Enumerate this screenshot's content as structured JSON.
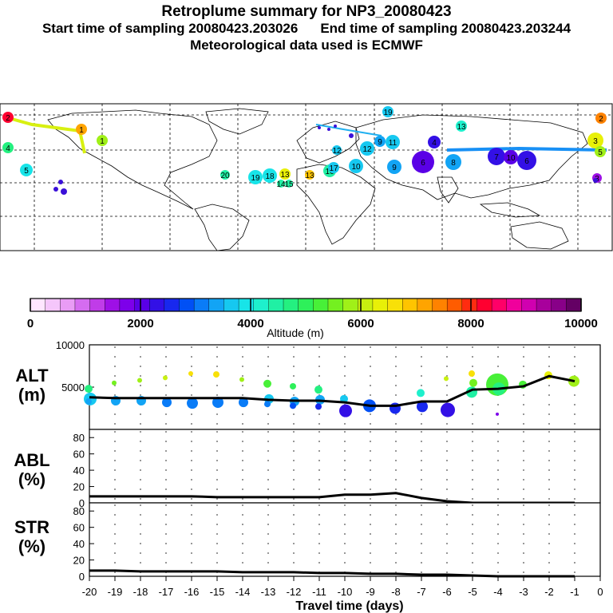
{
  "header": {
    "title": "Retroplume summary for NP3_20080423",
    "start_label": "Start time of sampling 20080423.203026",
    "end_label": "End time of sampling 20080423.203244",
    "met_label": "Meteorological data used is ECMWF"
  },
  "colorbar": {
    "title": "Altitude (m)",
    "ticks": [
      "0",
      "2000",
      "4000",
      "6000",
      "8000",
      "10000"
    ],
    "tick_values": [
      0,
      2000,
      4000,
      6000,
      8000,
      10000
    ],
    "colors": [
      "#ffe6ff",
      "#f5c6fb",
      "#e99cf5",
      "#d56cf0",
      "#c03ce8",
      "#9e10e6",
      "#7d00ea",
      "#5a00e6",
      "#3310e6",
      "#1828ee",
      "#0050f5",
      "#0a7cf7",
      "#12a4f5",
      "#16c8f0",
      "#18e4e8",
      "#1ef0cc",
      "#20f0a4",
      "#24f080",
      "#2ef05a",
      "#48f038",
      "#74f020",
      "#a0f018",
      "#c8f010",
      "#e8f008",
      "#f8e008",
      "#ffc400",
      "#ffa400",
      "#ff8200",
      "#ff5c00",
      "#ff2c10",
      "#ff0030",
      "#ff0068",
      "#f0009c",
      "#d000b0",
      "#a8009c",
      "#880088",
      "#640064"
    ]
  },
  "map": {
    "point_labels": [
      "2",
      "1",
      "4",
      "5",
      "13",
      "20",
      "19",
      "18",
      "16",
      "13",
      "14",
      "15",
      "12",
      "17",
      "12",
      "10",
      "19",
      "11",
      "9",
      "8",
      "7",
      "6",
      "3",
      "5",
      "6",
      "10",
      "1",
      "2",
      "3",
      "4",
      "9",
      "13"
    ]
  },
  "panels": {
    "alt": {
      "label": "ALT",
      "unit": "(m)",
      "yticks": [
        "10000",
        "5000"
      ]
    },
    "abl": {
      "label": "ABL",
      "unit": "(%)",
      "yticks": [
        "80",
        "60",
        "40",
        "20",
        "0"
      ]
    },
    "str": {
      "label": "STR",
      "unit": "(%)",
      "yticks": [
        "80",
        "60",
        "40",
        "20",
        "0"
      ]
    }
  },
  "chart_data": [
    {
      "type": "line",
      "title": "ALT",
      "ylabel": "(m)",
      "xlabel": "Travel time (days)",
      "xlim": [
        -20,
        0
      ],
      "ylim": [
        0,
        10000
      ],
      "x": [
        -20,
        -19,
        -18,
        -17,
        -16,
        -15,
        -14,
        -13,
        -12,
        -11,
        -10,
        -9,
        -8,
        -7,
        -6,
        -5,
        -4,
        -3,
        -2,
        -1
      ],
      "series": [
        {
          "name": "mean altitude",
          "values": [
            3800,
            3700,
            3700,
            3700,
            3700,
            3700,
            3700,
            3500,
            3400,
            3400,
            3200,
            2800,
            2800,
            3300,
            3300,
            4700,
            4800,
            5100,
            6300,
            5700
          ]
        }
      ],
      "cluster_altitudes": [
        [
          4800,
          3600,
          3300
        ],
        [
          5500,
          3400
        ],
        [
          5800,
          3400
        ],
        [
          6100,
          3200
        ],
        [
          6600,
          3100
        ],
        [
          6500,
          3200
        ],
        [
          5900,
          3200
        ],
        [
          5400,
          3600,
          3000
        ],
        [
          5100,
          3300,
          2800
        ],
        [
          4700,
          3500,
          2700
        ],
        [
          3600,
          2200
        ],
        [
          2800
        ],
        [
          2500
        ],
        [
          4300,
          2700
        ],
        [
          6000,
          2300
        ],
        [
          6600,
          5500,
          4400
        ],
        [
          5300,
          4800,
          1800
        ],
        [
          5300
        ],
        [
          6400
        ],
        [
          5700
        ]
      ],
      "cluster_sizes": [
        [
          5,
          8,
          4
        ],
        [
          3,
          6
        ],
        [
          3,
          6
        ],
        [
          3,
          6
        ],
        [
          3,
          7
        ],
        [
          4,
          7
        ],
        [
          3,
          6
        ],
        [
          5,
          6,
          4
        ],
        [
          4,
          6,
          4
        ],
        [
          5,
          6,
          4
        ],
        [
          5,
          8
        ],
        [
          8
        ],
        [
          7
        ],
        [
          5,
          7
        ],
        [
          3,
          9
        ],
        [
          4,
          5,
          7
        ],
        [
          14,
          8,
          2
        ],
        [
          5
        ],
        [
          5
        ],
        [
          7
        ]
      ]
    },
    {
      "type": "area",
      "title": "ABL",
      "ylabel": "(%)",
      "xlabel": "Travel time (days)",
      "xlim": [
        -20,
        0
      ],
      "ylim": [
        0,
        90
      ],
      "x": [
        -20,
        -19,
        -18,
        -17,
        -16,
        -15,
        -14,
        -13,
        -12,
        -11,
        -10,
        -9,
        -8,
        -7,
        -6,
        -5,
        -4,
        -3,
        -2,
        -1
      ],
      "series": [
        {
          "name": "ABL",
          "values": [
            8,
            8,
            8,
            8,
            8,
            7,
            7,
            7,
            7,
            7,
            10,
            10,
            12,
            6,
            2,
            0,
            0,
            0,
            0,
            0
          ]
        }
      ]
    },
    {
      "type": "area",
      "title": "STR",
      "ylabel": "(%)",
      "xlabel": "Travel time (days)",
      "xlim": [
        -20,
        0
      ],
      "ylim": [
        0,
        90
      ],
      "x": [
        -20,
        -19,
        -18,
        -17,
        -16,
        -15,
        -14,
        -13,
        -12,
        -11,
        -10,
        -9,
        -8,
        -7,
        -6,
        -5,
        -4,
        -3,
        -2,
        -1
      ],
      "series": [
        {
          "name": "STR",
          "values": [
            7,
            7,
            6,
            6,
            6,
            6,
            5,
            5,
            5,
            4,
            4,
            3,
            3,
            2,
            2,
            1,
            0,
            0,
            0,
            0
          ]
        }
      ]
    }
  ],
  "xaxis": {
    "label": "Travel time (days)",
    "ticks": [
      "-20",
      "-19",
      "-18",
      "-17",
      "-16",
      "-15",
      "-14",
      "-13",
      "-12",
      "-11",
      "-10",
      "-9",
      "-8",
      "-7",
      "-6",
      "-5",
      "-4",
      "-3",
      "-2",
      "-1",
      "0"
    ]
  }
}
